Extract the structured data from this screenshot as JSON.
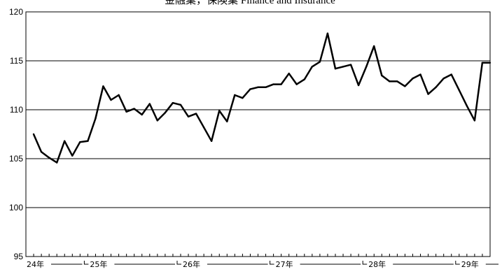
{
  "chart_data": {
    "type": "line",
    "title": "金融業，保険業 Finance and Insurance",
    "ylim": [
      95,
      120
    ],
    "yticks": [
      95,
      100,
      105,
      110,
      115,
      120
    ],
    "grid": true,
    "year_labels": [
      "24年",
      "25年",
      "26年",
      "27年",
      "28年",
      "29年"
    ],
    "year_start_index": [
      0,
      8,
      20,
      32,
      44,
      56
    ],
    "series": [
      {
        "values": [
          107.5,
          105.7,
          105.1,
          104.6,
          106.8,
          105.3,
          106.7,
          106.8,
          109.1,
          112.4,
          111.0,
          111.5,
          109.8,
          110.1,
          109.5,
          110.6,
          108.9,
          109.7,
          110.7,
          110.5,
          109.3,
          109.6,
          108.2,
          106.8,
          109.9,
          108.8,
          111.5,
          111.2,
          112.1,
          112.3,
          112.3,
          112.6,
          112.6,
          113.7,
          112.6,
          113.1,
          114.4,
          114.9,
          117.8,
          114.2,
          114.4,
          114.6,
          112.5,
          114.4,
          116.5,
          113.5,
          112.9,
          112.9,
          112.4,
          113.2,
          113.6,
          111.6,
          112.3,
          113.2,
          113.6,
          112.0,
          110.4,
          108.9,
          114.8,
          114.8
        ]
      }
    ]
  }
}
